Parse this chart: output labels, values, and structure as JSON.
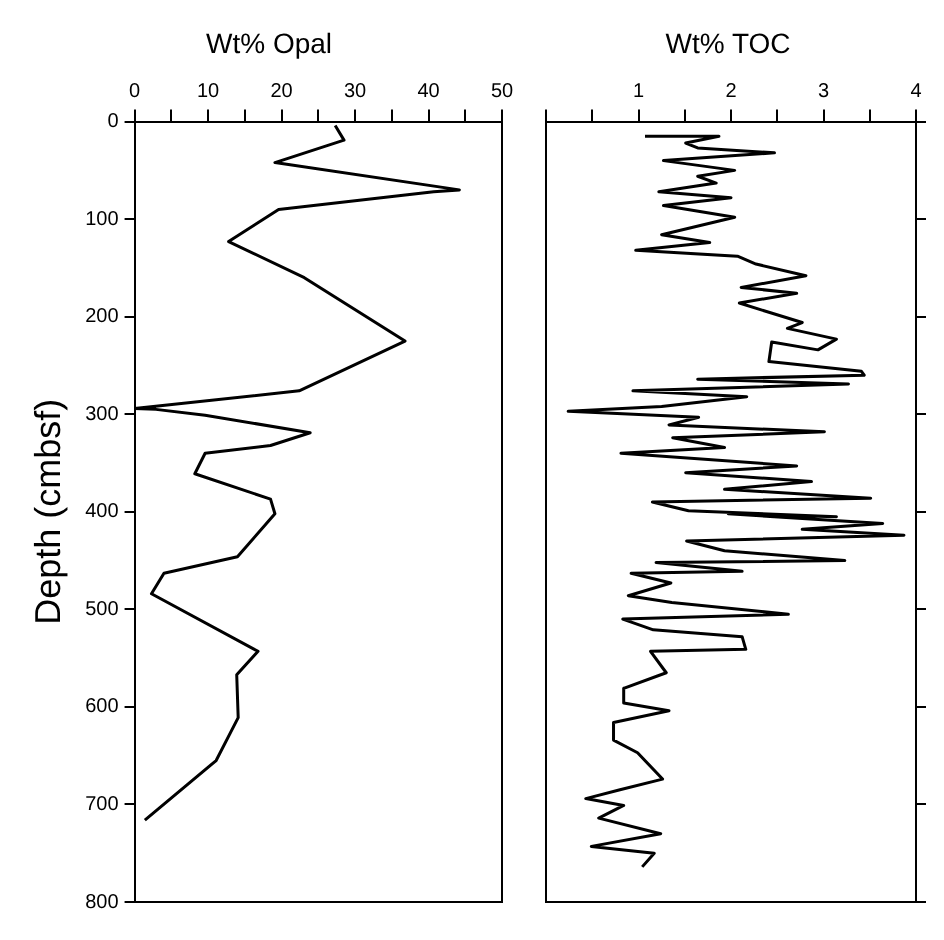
{
  "chart_data": [
    {
      "type": "line",
      "title": "Wt% Opal",
      "ylabel": "Depth (cmbsf)",
      "xlim": [
        0,
        50
      ],
      "xticks": [
        0,
        {
          "value": 5,
          "label": null
        },
        10,
        {
          "value": 15,
          "label": null
        },
        20,
        {
          "value": 25,
          "label": null
        },
        30,
        {
          "value": 35,
          "label": null
        },
        40,
        {
          "value": 45,
          "label": null
        },
        50
      ],
      "ylim": [
        800,
        0
      ],
      "yticks": [
        0,
        100,
        200,
        300,
        400,
        500,
        600,
        700,
        800
      ],
      "grid": false,
      "marker": "none",
      "line_style": "solid",
      "series": [
        {
          "color": "#000000",
          "x": [
            27.3,
            28.5,
            19.1,
            44.2,
            40.7,
            19.6,
            12.8,
            23.1,
            36.8,
            22.4,
            0,
            2.9,
            9.6,
            23.9,
            18.5,
            9.6,
            8.2,
            18.5,
            19.1,
            14,
            4,
            2.3,
            16.8,
            13.9,
            14.1,
            11.1,
            1.4
          ],
          "values": [
            4,
            19,
            42,
            70,
            72,
            90,
            123,
            160,
            225,
            276,
            294,
            295,
            301,
            319,
            332,
            340,
            361,
            387,
            402,
            446,
            463,
            484,
            543,
            567,
            611,
            655,
            716
          ]
        }
      ]
    },
    {
      "type": "line",
      "title": "Wt% TOC",
      "xlim": [
        0,
        4
      ],
      "xticks": [
        {
          "value": 0,
          "label": null
        },
        {
          "value": 0.5,
          "label": null
        },
        1,
        {
          "value": 1.5,
          "label": null
        },
        2,
        {
          "value": 2.5,
          "label": null
        },
        3,
        {
          "value": 3.5,
          "label": null
        },
        4
      ],
      "ylim": [
        800,
        0
      ],
      "yticks": [
        {
          "value": 0,
          "label": null
        },
        {
          "value": 100,
          "label": null
        },
        {
          "value": 200,
          "label": null
        },
        {
          "value": 300,
          "label": null
        },
        {
          "value": 400,
          "label": null
        },
        {
          "value": 500,
          "label": null
        },
        {
          "value": 600,
          "label": null
        },
        {
          "value": 700,
          "label": null
        },
        {
          "value": 800,
          "label": null
        }
      ],
      "tick_labels": "x",
      "grid": false,
      "marker": "none",
      "line_style": "solid",
      "series": [
        {
          "color": "#000000",
          "x": [
            1.07,
            1.87,
            1.51,
            1.64,
            2.47,
            1.27,
            2.04,
            1.64,
            1.84,
            1.22,
            2.0,
            1.27,
            2.04,
            1.25,
            1.77,
            0.97,
            2.07,
            2.27,
            2.81,
            2.11,
            2.71,
            2.09,
            2.77,
            2.61,
            3.14,
            2.94,
            2.44,
            2.41,
            3.41,
            3.44,
            1.64,
            3.27,
            0.94,
            2.17,
            1.25,
            0.24,
            1.65,
            1.33,
            3.01,
            1.37,
            1.93,
            0.81,
            2.71,
            1.51,
            2.87,
            1.93,
            3.51,
            1.15,
            1.54,
            3.14,
            1.97,
            3.64,
            2.77,
            3.87,
            1.52,
            1.93,
            3.23,
            1.19,
            2.12,
            0.92,
            1.35,
            0.89,
            1.36,
            2.62,
            0.83,
            1.16,
            2.12,
            2.16,
            1.13,
            1.3,
            0.84,
            0.84,
            1.33,
            0.73,
            0.73,
            0.99,
            1.26,
            0.8,
            0.43,
            0.84,
            0.57,
            1.24,
            0.49,
            1.17,
            1.04
          ],
          "values": [
            15,
            15,
            22,
            27,
            32,
            40,
            50,
            56,
            63,
            72,
            78,
            86,
            98,
            116,
            124,
            132,
            138,
            146,
            158,
            170,
            176,
            186,
            206,
            212,
            223,
            234,
            226,
            246,
            256,
            260,
            264,
            269,
            276,
            282,
            292,
            297,
            303,
            311,
            318,
            324,
            334,
            340,
            353,
            360,
            369,
            377,
            386,
            390,
            399,
            405,
            402,
            412,
            418,
            424,
            430,
            440,
            450,
            452,
            461,
            463,
            473,
            486,
            493,
            505,
            510,
            521,
            528,
            541,
            543,
            565,
            581,
            596,
            604,
            616,
            634,
            647,
            674,
            685,
            694,
            701,
            714,
            730,
            743,
            750,
            764
          ]
        }
      ]
    }
  ]
}
